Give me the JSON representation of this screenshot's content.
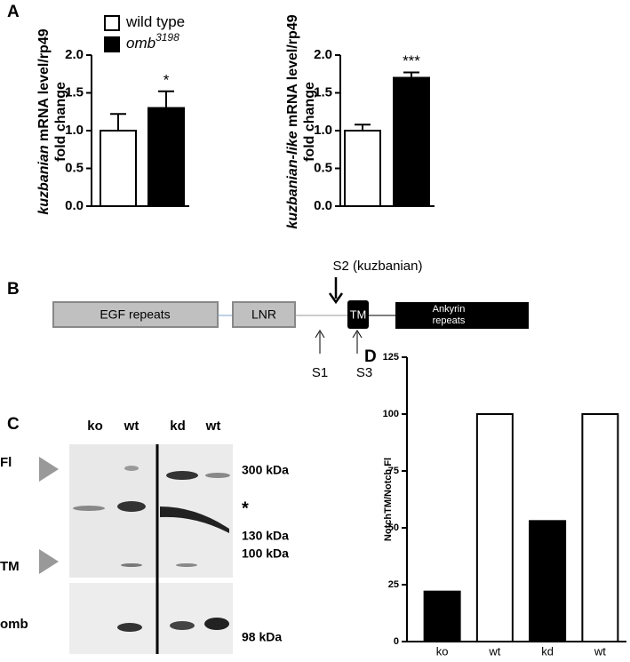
{
  "panel_labels": [
    "A",
    "B",
    "C",
    "D"
  ],
  "chart_data": [
    {
      "type": "bar",
      "ylabel": {
        "italic": "kuzbanian",
        "rest": " mRNA level/rp49",
        "line2": "fold change"
      },
      "series": [
        {
          "name": "wild type",
          "color": "#ffffff",
          "values": [
            1.0
          ],
          "errors": [
            0.22
          ]
        },
        {
          "name": "omb",
          "name_sup": "3198",
          "color": "#000000",
          "values": [
            1.3
          ],
          "errors": [
            0.22
          ],
          "annotations": [
            "*"
          ]
        }
      ],
      "ylim": [
        0,
        2
      ],
      "yticks": [
        {
          "value": 0,
          "label": "0.0"
        },
        {
          "value": 0.5,
          "label": "0.5"
        },
        {
          "value": 1,
          "label": "1.0"
        },
        {
          "value": 1.5,
          "label": "1.5"
        },
        {
          "value": 2,
          "label": "2.0"
        }
      ],
      "legend": true
    },
    {
      "type": "bar",
      "ylabel": {
        "italic": "kuzbanian-like",
        "rest": " mRNA level/rp49",
        "line2": "fold change"
      },
      "series": [
        {
          "name": "wild type",
          "color": "#ffffff",
          "values": [
            1.0
          ],
          "errors": [
            0.08
          ]
        },
        {
          "name": "omb",
          "name_sup": "3198",
          "color": "#000000",
          "values": [
            1.7
          ],
          "errors": [
            0.07
          ],
          "annotations": [
            "***"
          ]
        }
      ],
      "ylim": [
        0,
        2
      ],
      "yticks": [
        {
          "value": 0,
          "label": "0.0"
        },
        {
          "value": 0.5,
          "label": "0.5"
        },
        {
          "value": 1,
          "label": "1.0"
        },
        {
          "value": 1.5,
          "label": "1.5"
        },
        {
          "value": 2,
          "label": "2.0"
        }
      ],
      "legend": false
    },
    {
      "type": "column",
      "ylabel": "NotchTM/Notch Fl",
      "categories": [
        "ko",
        "wt",
        "kd",
        "wt"
      ],
      "values": [
        22,
        100,
        53,
        100
      ],
      "colors": [
        "#000000",
        "#ffffff",
        "#000000",
        "#ffffff"
      ],
      "ylim": [
        0,
        125
      ],
      "yticks": [
        0,
        25,
        50,
        75,
        100,
        125
      ]
    }
  ],
  "diagram": {
    "domains": [
      "EGF repeats",
      "LNR",
      "TM",
      "Ankyrin",
      "repeats"
    ],
    "sites": [
      "S2 (kuzbanian)",
      "S1",
      "S3"
    ]
  },
  "blot": {
    "lanes": [
      "ko",
      "wt",
      "kd",
      "wt"
    ],
    "rows": [
      "Fl",
      "TM",
      "omb"
    ],
    "markers": [
      "300 kDa",
      "*",
      "130 kDa",
      "100 kDa",
      "98 kDa"
    ]
  }
}
